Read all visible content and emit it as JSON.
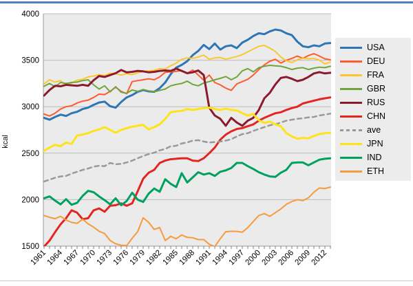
{
  "page": {
    "top_border_color": "#4f81bd",
    "bottom_border_color": "#bfc9d8",
    "background": "#ffffff"
  },
  "chart": {
    "ylabel": "kcal",
    "plot_bg": "#ebebeb",
    "grid_color": "#bdbdbd",
    "axis_color": "#9a9a9a",
    "tick_color": "#7f7f7f",
    "y_tick_labels": [
      "4000",
      "3500",
      "3000",
      "2500",
      "2000",
      "1500"
    ],
    "x_tick_labels": [
      "1961",
      "1964",
      "1967",
      "1970",
      "1973",
      "1976",
      "1979",
      "1982",
      "1985",
      "1988",
      "1991",
      "1994",
      "1997",
      "2000",
      "2003",
      "2006",
      "2009",
      "2012"
    ]
  },
  "chart_data": {
    "type": "line",
    "title": "",
    "xlabel": "",
    "ylabel": "kcal",
    "ylim": [
      1500,
      4000
    ],
    "x_range": [
      1961,
      2013
    ],
    "grid": true,
    "legend_position": "right",
    "x": [
      1961,
      1962,
      1963,
      1964,
      1965,
      1966,
      1967,
      1968,
      1969,
      1970,
      1971,
      1972,
      1973,
      1974,
      1975,
      1976,
      1977,
      1978,
      1979,
      1980,
      1981,
      1982,
      1983,
      1984,
      1985,
      1986,
      1987,
      1988,
      1989,
      1990,
      1991,
      1992,
      1993,
      1994,
      1995,
      1996,
      1997,
      1998,
      1999,
      2000,
      2001,
      2002,
      2003,
      2004,
      2005,
      2006,
      2007,
      2008,
      2009,
      2010,
      2011,
      2012,
      2013
    ],
    "series": [
      {
        "name": "USA",
        "color": "#2e75b6",
        "width": 3,
        "dash": false,
        "values": [
          2880,
          2860,
          2890,
          2915,
          2900,
          2930,
          2945,
          2975,
          2990,
          3020,
          3045,
          3055,
          3005,
          2990,
          3050,
          3100,
          3125,
          3160,
          3180,
          3165,
          3160,
          3200,
          3260,
          3350,
          3420,
          3450,
          3490,
          3555,
          3600,
          3665,
          3620,
          3680,
          3615,
          3650,
          3660,
          3630,
          3690,
          3720,
          3760,
          3790,
          3780,
          3810,
          3830,
          3820,
          3790,
          3770,
          3700,
          3650,
          3640,
          3660,
          3650,
          3680,
          3685
        ]
      },
      {
        "name": "DEU",
        "color": "#fe5b2e",
        "width": 2,
        "dash": false,
        "values": [
          2920,
          2900,
          2930,
          2975,
          3000,
          3010,
          3040,
          3060,
          3070,
          3100,
          3135,
          3130,
          3165,
          3210,
          3165,
          3140,
          3270,
          3280,
          3290,
          3300,
          3290,
          3320,
          3370,
          3375,
          3380,
          3390,
          3360,
          3395,
          3340,
          3285,
          3340,
          3260,
          3235,
          3200,
          3175,
          3245,
          3270,
          3295,
          3340,
          3400,
          3450,
          3490,
          3510,
          3470,
          3500,
          3520,
          3545,
          3520,
          3550,
          3570,
          3545,
          3515,
          3505
        ]
      },
      {
        "name": "FRA",
        "color": "#fec62e",
        "width": 2,
        "dash": false,
        "values": [
          3245,
          3290,
          3265,
          3280,
          3230,
          3255,
          3285,
          3295,
          3320,
          3330,
          3345,
          3335,
          3360,
          3355,
          3340,
          3355,
          3345,
          3365,
          3380,
          3385,
          3390,
          3410,
          3405,
          3440,
          3470,
          3510,
          3525,
          3520,
          3535,
          3555,
          3510,
          3525,
          3530,
          3510,
          3525,
          3540,
          3560,
          3590,
          3620,
          3650,
          3660,
          3630,
          3595,
          3535,
          3495,
          3475,
          3505,
          3520,
          3515,
          3520,
          3500,
          3460,
          3480
        ]
      },
      {
        "name": "GBR",
        "color": "#70a53c",
        "width": 2,
        "dash": false,
        "values": [
          3220,
          3250,
          3215,
          3260,
          3250,
          3260,
          3265,
          3280,
          3290,
          3235,
          3190,
          3225,
          3160,
          3215,
          3155,
          3145,
          3180,
          3165,
          3185,
          3170,
          3160,
          3175,
          3190,
          3225,
          3240,
          3250,
          3275,
          3240,
          3225,
          3255,
          3270,
          3290,
          3305,
          3325,
          3290,
          3320,
          3385,
          3410,
          3375,
          3420,
          3435,
          3445,
          3440,
          3435,
          3420,
          3400,
          3415,
          3420,
          3400,
          3415,
          3425,
          3420,
          3435
        ]
      },
      {
        "name": "RUS",
        "color": "#8c1a2e",
        "width": 3,
        "dash": false,
        "values": [
          3120,
          3180,
          3225,
          3220,
          3235,
          3230,
          3225,
          3235,
          3225,
          3285,
          3330,
          3320,
          3340,
          3360,
          3395,
          3370,
          3375,
          3385,
          3380,
          3370,
          3375,
          3385,
          3390,
          3385,
          3410,
          3385,
          3360,
          3370,
          3390,
          3340,
          2990,
          2905,
          2870,
          2795,
          2880,
          2830,
          2795,
          2850,
          2880,
          2965,
          3090,
          3150,
          3240,
          3310,
          3320,
          3300,
          3275,
          3290,
          3320,
          3358,
          3372,
          3358,
          3365
        ]
      },
      {
        "name": "CHN",
        "color": "#e32520",
        "width": 3,
        "dash": false,
        "values": [
          1495,
          1560,
          1650,
          1735,
          1800,
          1885,
          1860,
          1790,
          1800,
          1885,
          1905,
          1870,
          1935,
          1940,
          1960,
          1935,
          1960,
          2090,
          2225,
          2290,
          2320,
          2395,
          2420,
          2435,
          2440,
          2445,
          2445,
          2420,
          2415,
          2445,
          2500,
          2560,
          2645,
          2700,
          2735,
          2760,
          2770,
          2790,
          2810,
          2850,
          2880,
          2905,
          2930,
          2940,
          2965,
          2985,
          3000,
          3035,
          3050,
          3065,
          3080,
          3090,
          3100
        ]
      },
      {
        "name": "ave",
        "color": "#999999",
        "width": 2.5,
        "dash": true,
        "values": [
          2195,
          2215,
          2235,
          2250,
          2255,
          2280,
          2300,
          2320,
          2335,
          2355,
          2365,
          2360,
          2395,
          2380,
          2385,
          2400,
          2420,
          2445,
          2470,
          2490,
          2505,
          2530,
          2545,
          2575,
          2580,
          2605,
          2615,
          2635,
          2640,
          2625,
          2615,
          2620,
          2625,
          2635,
          2650,
          2680,
          2705,
          2715,
          2740,
          2760,
          2780,
          2800,
          2810,
          2830,
          2850,
          2860,
          2870,
          2875,
          2885,
          2890,
          2905,
          2915,
          2925
        ]
      },
      {
        "name": "JPN",
        "color": "#fee319",
        "width": 3,
        "dash": false,
        "values": [
          2525,
          2560,
          2590,
          2575,
          2615,
          2600,
          2690,
          2700,
          2715,
          2740,
          2755,
          2780,
          2750,
          2720,
          2750,
          2770,
          2785,
          2795,
          2805,
          2755,
          2780,
          2810,
          2870,
          2940,
          2950,
          2955,
          2975,
          2965,
          2975,
          2985,
          2990,
          2975,
          2965,
          2980,
          2965,
          2960,
          2930,
          2905,
          2920,
          2855,
          2825,
          2840,
          2810,
          2790,
          2715,
          2680,
          2655,
          2665,
          2660,
          2685,
          2705,
          2715,
          2720
        ]
      },
      {
        "name": "IND",
        "color": "#00a05f",
        "width": 3,
        "dash": false,
        "values": [
          2015,
          2035,
          1990,
          1950,
          2005,
          1945,
          1965,
          2040,
          2095,
          2080,
          2035,
          1995,
          1950,
          2015,
          1940,
          1985,
          2075,
          2000,
          1975,
          2065,
          2120,
          2085,
          2220,
          2170,
          2135,
          2285,
          2185,
          2240,
          2295,
          2270,
          2285,
          2255,
          2300,
          2315,
          2340,
          2395,
          2395,
          2360,
          2330,
          2295,
          2270,
          2250,
          2245,
          2290,
          2320,
          2395,
          2400,
          2400,
          2370,
          2400,
          2430,
          2440,
          2445
        ]
      },
      {
        "name": "ETH",
        "color": "#f79a3b",
        "width": 2,
        "dash": false,
        "values": [
          1830,
          1810,
          1795,
          1820,
          1780,
          1755,
          1745,
          1790,
          1740,
          1705,
          1660,
          1635,
          1560,
          1525,
          1510,
          1505,
          1585,
          1655,
          1805,
          1755,
          1680,
          1700,
          1560,
          1605,
          1580,
          1620,
          1595,
          1590,
          1570,
          1570,
          1520,
          1495,
          1580,
          1655,
          1660,
          1658,
          1650,
          1700,
          1765,
          1830,
          1850,
          1820,
          1860,
          1900,
          1950,
          1980,
          2000,
          1990,
          2020,
          2080,
          2125,
          2120,
          2135
        ]
      }
    ]
  }
}
